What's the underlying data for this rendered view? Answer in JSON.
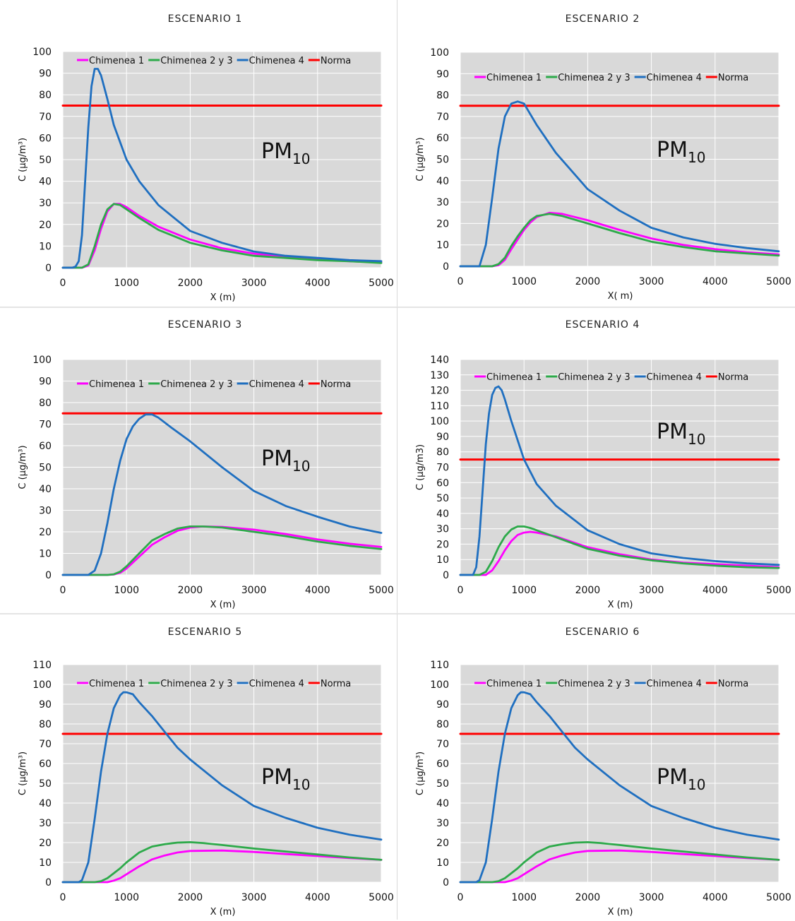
{
  "chart_data": [
    {
      "type": "line",
      "title": "ESCENARIO 1",
      "xlabel": "X (m)",
      "ylabel": "C (µg/m³)",
      "annotation": {
        "main": "PM",
        "sub": "10"
      },
      "xlim": [
        0,
        5000
      ],
      "ylim": [
        0,
        100
      ],
      "xticks": [
        0,
        1000,
        2000,
        3000,
        4000,
        5000
      ],
      "yticks": [
        0,
        10,
        20,
        30,
        40,
        50,
        60,
        70,
        80,
        90,
        100
      ],
      "grid": true,
      "legend_position": "top",
      "series": [
        {
          "name": "Chimenea 1",
          "color": "#ff00ff",
          "x": [
            0,
            200,
            300,
            400,
            500,
            600,
            700,
            800,
            900,
            1000,
            1200,
            1500,
            2000,
            2500,
            3000,
            3500,
            4000,
            4500,
            5000
          ],
          "y": [
            0,
            0,
            0,
            1,
            8,
            18,
            26,
            29.5,
            29.5,
            28,
            24,
            19,
            13,
            9,
            6.5,
            5,
            4,
            3,
            2.5
          ]
        },
        {
          "name": "Chimenea 2 y 3",
          "color": "#2daa4a",
          "x": [
            0,
            200,
            300,
            400,
            500,
            600,
            700,
            800,
            900,
            1000,
            1200,
            1500,
            2000,
            2500,
            3000,
            3500,
            4000,
            4500,
            5000
          ],
          "y": [
            0,
            0,
            0,
            1.5,
            10,
            20,
            27,
            29.5,
            29,
            27,
            23,
            17.5,
            11.5,
            8,
            5.5,
            4.5,
            3.5,
            3,
            2.2
          ]
        },
        {
          "name": "Chimenea 4",
          "color": "#1f6fc0",
          "x": [
            0,
            150,
            200,
            250,
            300,
            350,
            400,
            450,
            500,
            550,
            600,
            700,
            800,
            1000,
            1200,
            1500,
            2000,
            2500,
            3000,
            3500,
            4000,
            4500,
            5000
          ],
          "y": [
            0,
            0,
            0.5,
            3,
            15,
            40,
            65,
            84,
            92,
            92,
            89,
            78,
            66,
            50,
            40,
            29,
            17,
            11.5,
            7.5,
            5.5,
            4.5,
            3.5,
            3
          ]
        },
        {
          "name": "Norma",
          "color": "#ff0000",
          "x": [
            0,
            5000
          ],
          "y": [
            75,
            75
          ]
        }
      ]
    },
    {
      "type": "line",
      "title": "ESCENARIO 2",
      "xlabel": "X( m)",
      "ylabel": "C (µg/m³)",
      "annotation": {
        "main": "PM",
        "sub": "10"
      },
      "xlim": [
        0,
        5000
      ],
      "ylim": [
        0,
        100
      ],
      "xticks": [
        0,
        1000,
        2000,
        3000,
        4000,
        5000
      ],
      "yticks": [
        0,
        10,
        20,
        30,
        40,
        50,
        60,
        70,
        80,
        90,
        100
      ],
      "grid": true,
      "legend_position": "top",
      "series": [
        {
          "name": "Chimenea 1",
          "color": "#ff00ff",
          "x": [
            0,
            500,
            600,
            700,
            800,
            900,
            1000,
            1100,
            1200,
            1400,
            1600,
            2000,
            2500,
            3000,
            3500,
            4000,
            4500,
            5000
          ],
          "y": [
            0,
            0,
            0.5,
            3,
            8,
            12.5,
            17,
            20.5,
            23,
            25,
            24.5,
            21.5,
            17,
            13,
            10,
            8,
            6.5,
            5.5
          ]
        },
        {
          "name": "Chimenea 2 y 3",
          "color": "#2daa4a",
          "x": [
            0,
            500,
            600,
            700,
            800,
            900,
            1000,
            1100,
            1200,
            1400,
            1600,
            2000,
            2500,
            3000,
            3500,
            4000,
            4500,
            5000
          ],
          "y": [
            0,
            0,
            1,
            4,
            9.5,
            14,
            18,
            21.5,
            23.5,
            24.5,
            23.5,
            20,
            15.5,
            11.5,
            9,
            7,
            6,
            5
          ]
        },
        {
          "name": "Chimenea 4",
          "color": "#1f6fc0",
          "x": [
            0,
            300,
            400,
            500,
            600,
            700,
            800,
            900,
            1000,
            1200,
            1500,
            2000,
            2500,
            3000,
            3500,
            4000,
            4500,
            5000
          ],
          "y": [
            0,
            0,
            10,
            32,
            55,
            70,
            76,
            77,
            76,
            66,
            53,
            36,
            26,
            18,
            13.5,
            10.5,
            8.5,
            7
          ]
        },
        {
          "name": "Norma",
          "color": "#ff0000",
          "x": [
            0,
            5000
          ],
          "y": [
            75,
            75
          ]
        }
      ]
    },
    {
      "type": "line",
      "title": "ESCENARIO 3",
      "xlabel": "X (m)",
      "ylabel": "C (µg/m³)",
      "annotation": {
        "main": "PM",
        "sub": "10"
      },
      "xlim": [
        0,
        5000
      ],
      "ylim": [
        0,
        100
      ],
      "xticks": [
        0,
        1000,
        2000,
        3000,
        4000,
        5000
      ],
      "yticks": [
        0,
        10,
        20,
        30,
        40,
        50,
        60,
        70,
        80,
        90,
        100
      ],
      "grid": true,
      "legend_position": "top",
      "series": [
        {
          "name": "Chimenea 1",
          "color": "#ff00ff",
          "x": [
            0,
            700,
            800,
            900,
            1000,
            1200,
            1400,
            1600,
            1800,
            2000,
            2200,
            2500,
            3000,
            3500,
            4000,
            4500,
            5000
          ],
          "y": [
            0,
            0,
            0.2,
            1,
            3,
            8.5,
            14,
            17.5,
            20.5,
            22,
            22.5,
            22.3,
            21,
            19,
            16.5,
            14.5,
            13
          ]
        },
        {
          "name": "Chimenea 2 y 3",
          "color": "#2daa4a",
          "x": [
            0,
            700,
            800,
            900,
            1000,
            1200,
            1400,
            1600,
            1800,
            2000,
            2200,
            2500,
            3000,
            3500,
            4000,
            4500,
            5000
          ],
          "y": [
            0,
            0,
            0.3,
            1.5,
            4,
            10,
            16,
            19,
            21.5,
            22.5,
            22.5,
            22,
            20,
            18,
            15.5,
            13.5,
            12
          ]
        },
        {
          "name": "Chimenea 4",
          "color": "#1f6fc0",
          "x": [
            0,
            400,
            500,
            600,
            700,
            800,
            900,
            1000,
            1100,
            1200,
            1300,
            1400,
            1500,
            1700,
            2000,
            2500,
            3000,
            3500,
            4000,
            4500,
            5000
          ],
          "y": [
            0,
            0,
            2,
            10,
            24,
            40,
            53,
            63,
            69,
            72.5,
            74.5,
            74.5,
            73,
            68.5,
            62,
            50,
            39,
            32,
            27,
            22.5,
            19.5
          ]
        },
        {
          "name": "Norma",
          "color": "#ff0000",
          "x": [
            0,
            5000
          ],
          "y": [
            75,
            75
          ]
        }
      ]
    },
    {
      "type": "line",
      "title": "ESCENARIO 4",
      "xlabel": "X (m)",
      "ylabel": "C (µg/m3)",
      "annotation": {
        "main": "PM",
        "sub": "10"
      },
      "xlim": [
        0,
        5000
      ],
      "ylim": [
        0,
        140
      ],
      "xticks": [
        0,
        1000,
        2000,
        3000,
        4000,
        5000
      ],
      "yticks": [
        0,
        10,
        20,
        30,
        40,
        50,
        60,
        70,
        80,
        90,
        100,
        110,
        120,
        130,
        140
      ],
      "grid": true,
      "legend_position": "top",
      "series": [
        {
          "name": "Chimenea 1",
          "color": "#ff00ff",
          "x": [
            0,
            400,
            500,
            600,
            700,
            800,
            900,
            1000,
            1100,
            1200,
            1500,
            2000,
            2500,
            3000,
            3500,
            4000,
            4500,
            5000
          ],
          "y": [
            0,
            0,
            3,
            9,
            16,
            22,
            26,
            27.5,
            28,
            27.5,
            25,
            18,
            13.5,
            10,
            8,
            7,
            6,
            5
          ]
        },
        {
          "name": "Chimenea 2 y 3",
          "color": "#2daa4a",
          "x": [
            0,
            300,
            400,
            500,
            600,
            700,
            800,
            900,
            1000,
            1100,
            1200,
            1500,
            2000,
            2500,
            3000,
            3500,
            4000,
            4500,
            5000
          ],
          "y": [
            0,
            0,
            2,
            9,
            18,
            25,
            29.5,
            31.5,
            31.5,
            30.5,
            29,
            24.5,
            17,
            12.5,
            9.5,
            7.5,
            6,
            5,
            4.5
          ]
        },
        {
          "name": "Chimenea 4",
          "color": "#1f6fc0",
          "x": [
            0,
            200,
            250,
            300,
            350,
            400,
            450,
            500,
            550,
            600,
            650,
            700,
            800,
            1000,
            1200,
            1500,
            2000,
            2500,
            3000,
            3500,
            4000,
            4500,
            5000
          ],
          "y": [
            0,
            0,
            5,
            25,
            55,
            85,
            105,
            117,
            121.5,
            122.5,
            120,
            114,
            100,
            75,
            59,
            45,
            29,
            20,
            14,
            11,
            9,
            7.5,
            6.5
          ]
        },
        {
          "name": "Norma",
          "color": "#ff0000",
          "x": [
            0,
            5000
          ],
          "y": [
            75,
            75
          ]
        }
      ]
    },
    {
      "type": "line",
      "title": "ESCENARIO 5",
      "xlabel": "X (m)",
      "ylabel": "C (µg/m³)",
      "annotation": {
        "main": "PM",
        "sub": "10"
      },
      "xlim": [
        0,
        5000
      ],
      "ylim": [
        0,
        110
      ],
      "xticks": [
        0,
        1000,
        2000,
        3000,
        4000,
        5000
      ],
      "yticks": [
        0,
        10,
        20,
        30,
        40,
        50,
        60,
        70,
        80,
        90,
        100,
        110
      ],
      "grid": true,
      "legend_position": "top",
      "series": [
        {
          "name": "Chimenea 1",
          "color": "#ff00ff",
          "x": [
            0,
            700,
            800,
            900,
            1000,
            1100,
            1200,
            1400,
            1600,
            1800,
            2000,
            2500,
            3000,
            3500,
            4000,
            4500,
            5000
          ],
          "y": [
            0,
            0,
            0.8,
            2,
            4,
            6,
            8,
            11.5,
            13.5,
            15,
            15.8,
            16,
            15.3,
            14.2,
            13.2,
            12.2,
            11.3
          ]
        },
        {
          "name": "Chimenea 2 y 3",
          "color": "#2daa4a",
          "x": [
            0,
            500,
            600,
            700,
            800,
            900,
            1000,
            1200,
            1400,
            1600,
            1800,
            2000,
            2200,
            2500,
            3000,
            3500,
            4000,
            4500,
            5000
          ],
          "y": [
            0,
            0,
            0.5,
            2,
            4.5,
            7,
            10,
            15,
            18,
            19.2,
            20,
            20.2,
            19.8,
            18.8,
            17,
            15.5,
            14,
            12.5,
            11.3
          ]
        },
        {
          "name": "Chimenea 4",
          "color": "#1f6fc0",
          "x": [
            0,
            250,
            300,
            400,
            500,
            600,
            700,
            800,
            900,
            950,
            1000,
            1100,
            1200,
            1400,
            1600,
            1800,
            2000,
            2500,
            3000,
            3500,
            4000,
            4500,
            5000
          ],
          "y": [
            0,
            0,
            1,
            10,
            32,
            56,
            75,
            88,
            94.5,
            96,
            96,
            95,
            91,
            84,
            76,
            68,
            62,
            49,
            38.5,
            32.5,
            27.5,
            24,
            21.5
          ]
        },
        {
          "name": "Norma",
          "color": "#ff0000",
          "x": [
            0,
            5000
          ],
          "y": [
            75,
            75
          ]
        }
      ]
    },
    {
      "type": "line",
      "title": "ESCENARIO 6",
      "xlabel": "X (m)",
      "ylabel": "C (µg/m³)",
      "annotation": {
        "main": "PM",
        "sub": "10"
      },
      "xlim": [
        0,
        5000
      ],
      "ylim": [
        0,
        110
      ],
      "xticks": [
        0,
        1000,
        2000,
        3000,
        4000,
        5000
      ],
      "yticks": [
        0,
        10,
        20,
        30,
        40,
        50,
        60,
        70,
        80,
        90,
        100,
        110
      ],
      "grid": true,
      "legend_position": "top",
      "series": [
        {
          "name": "Chimenea 1",
          "color": "#ff00ff",
          "x": [
            0,
            700,
            800,
            900,
            1000,
            1100,
            1200,
            1400,
            1600,
            1800,
            2000,
            2500,
            3000,
            3500,
            4000,
            4500,
            5000
          ],
          "y": [
            0,
            0,
            0.8,
            2,
            4,
            6,
            8,
            11.5,
            13.5,
            15,
            15.8,
            16,
            15.3,
            14.2,
            13.2,
            12.2,
            11.3
          ]
        },
        {
          "name": "Chimenea 2 y 3",
          "color": "#2daa4a",
          "x": [
            0,
            500,
            600,
            700,
            800,
            900,
            1000,
            1200,
            1400,
            1600,
            1800,
            2000,
            2200,
            2500,
            3000,
            3500,
            4000,
            4500,
            5000
          ],
          "y": [
            0,
            0,
            0.5,
            2,
            4.5,
            7,
            10,
            15,
            18,
            19.2,
            20,
            20.2,
            19.8,
            18.8,
            17,
            15.5,
            14,
            12.5,
            11.3
          ]
        },
        {
          "name": "Chimenea 4",
          "color": "#1f6fc0",
          "x": [
            0,
            250,
            300,
            400,
            500,
            600,
            700,
            800,
            900,
            950,
            1000,
            1100,
            1200,
            1400,
            1600,
            1800,
            2000,
            2500,
            3000,
            3500,
            4000,
            4500,
            5000
          ],
          "y": [
            0,
            0,
            1,
            10,
            32,
            56,
            75,
            88,
            94.5,
            96,
            96,
            95,
            91,
            84,
            76,
            68,
            62,
            49,
            38.5,
            32.5,
            27.5,
            24,
            21.5
          ]
        },
        {
          "name": "Norma",
          "color": "#ff0000",
          "x": [
            0,
            5000
          ],
          "y": [
            75,
            75
          ]
        }
      ]
    }
  ]
}
